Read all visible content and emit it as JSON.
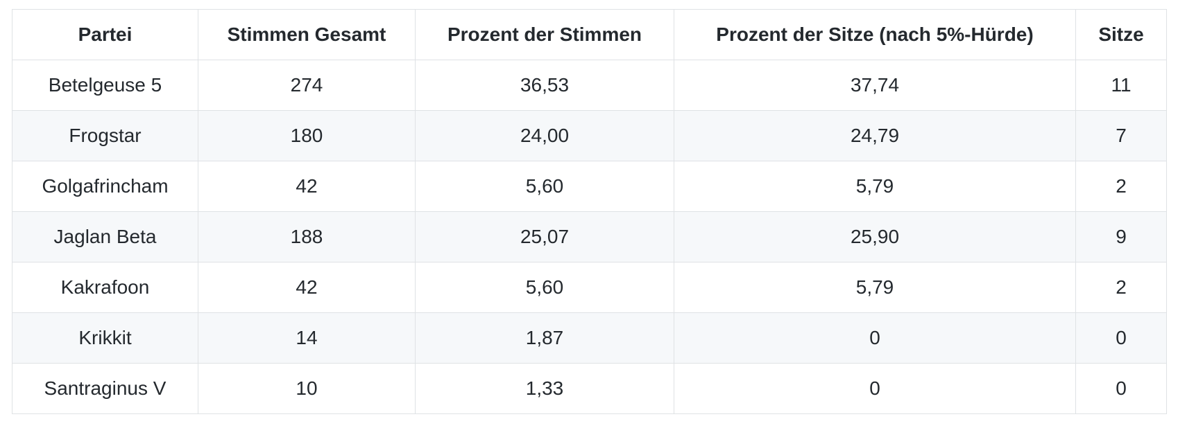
{
  "table": {
    "header": [
      "Partei",
      "Stimmen Gesamt",
      "Prozent der Stimmen",
      "Prozent der Sitze (nach 5%-Hürde)",
      "Sitze"
    ],
    "rows": [
      [
        "Betelgeuse 5",
        "274",
        "36,53",
        "37,74",
        "11"
      ],
      [
        "Frogstar",
        "180",
        "24,00",
        "24,79",
        "7"
      ],
      [
        "Golgafrincham",
        "42",
        "5,60",
        "5,79",
        "2"
      ],
      [
        "Jaglan Beta",
        "188",
        "25,07",
        "25,90",
        "9"
      ],
      [
        "Kakrafoon",
        "42",
        "5,60",
        "5,79",
        "2"
      ],
      [
        "Krikkit",
        "14",
        "1,87",
        "0",
        "0"
      ],
      [
        "Santraginus V",
        "10",
        "1,33",
        "0",
        "0"
      ]
    ]
  }
}
